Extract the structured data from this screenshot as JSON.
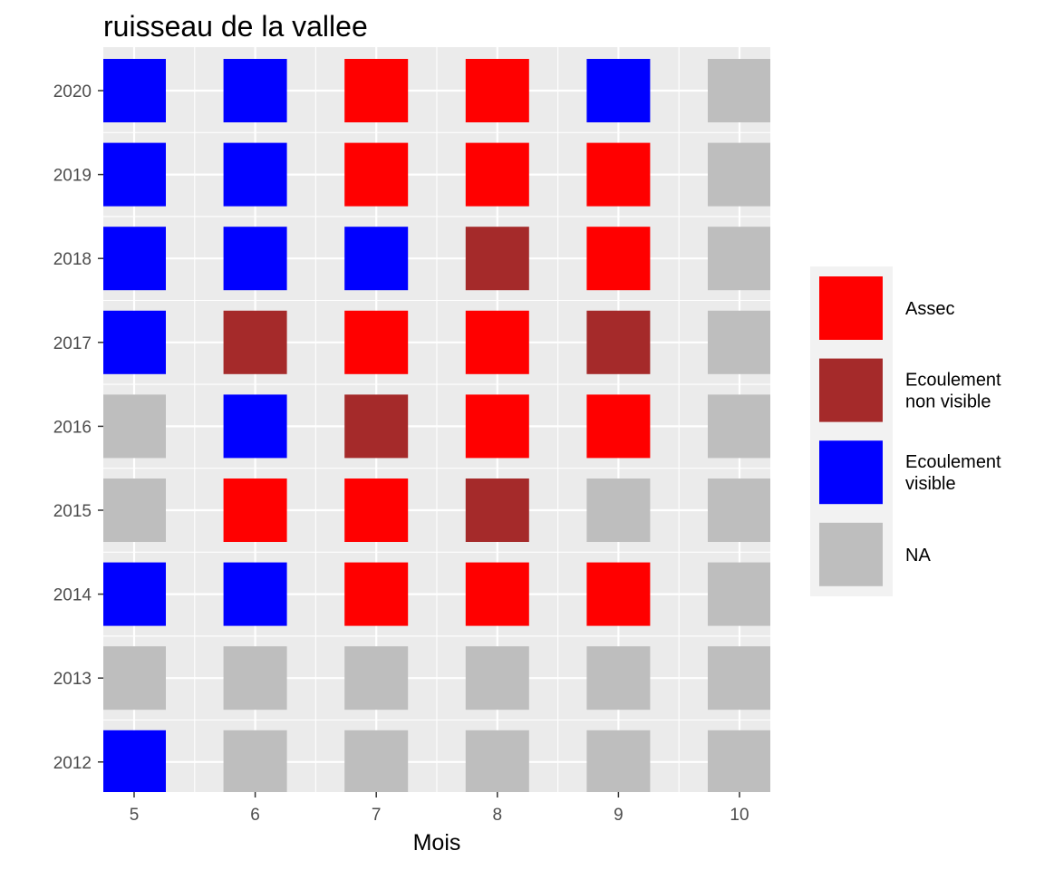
{
  "chart_data": {
    "type": "heatmap",
    "title": "ruisseau de la vallee",
    "xlabel": "Mois",
    "ylabel": "",
    "x_categories": [
      "5",
      "6",
      "7",
      "8",
      "9",
      "10"
    ],
    "y_categories": [
      "2012",
      "2013",
      "2014",
      "2015",
      "2016",
      "2017",
      "2018",
      "2019",
      "2020"
    ],
    "legend": {
      "position": "right",
      "entries": [
        {
          "key": "assec",
          "label": [
            "Assec"
          ],
          "color": "#FF0000"
        },
        {
          "key": "ecoulement_non_visible",
          "label": [
            "Ecoulement",
            "non visible"
          ],
          "color": "#A52A2A"
        },
        {
          "key": "ecoulement_visible",
          "label": [
            "Ecoulement",
            "visible"
          ],
          "color": "#0000FF"
        },
        {
          "key": "na",
          "label": [
            "NA"
          ],
          "color": "#BEBEBE"
        }
      ]
    },
    "rows": [
      {
        "year": "2020",
        "values": [
          "ecoulement_visible",
          "ecoulement_visible",
          "assec",
          "assec",
          "ecoulement_visible",
          "na"
        ]
      },
      {
        "year": "2019",
        "values": [
          "ecoulement_visible",
          "ecoulement_visible",
          "assec",
          "assec",
          "assec",
          "na"
        ]
      },
      {
        "year": "2018",
        "values": [
          "ecoulement_visible",
          "ecoulement_visible",
          "ecoulement_visible",
          "ecoulement_non_visible",
          "assec",
          "na"
        ]
      },
      {
        "year": "2017",
        "values": [
          "ecoulement_visible",
          "ecoulement_non_visible",
          "assec",
          "assec",
          "ecoulement_non_visible",
          "na"
        ]
      },
      {
        "year": "2016",
        "values": [
          "na",
          "ecoulement_visible",
          "ecoulement_non_visible",
          "assec",
          "assec",
          "na"
        ]
      },
      {
        "year": "2015",
        "values": [
          "na",
          "assec",
          "assec",
          "ecoulement_non_visible",
          "na",
          "na"
        ]
      },
      {
        "year": "2014",
        "values": [
          "ecoulement_visible",
          "ecoulement_visible",
          "assec",
          "assec",
          "assec",
          "na"
        ]
      },
      {
        "year": "2013",
        "values": [
          "na",
          "na",
          "na",
          "na",
          "na",
          "na"
        ]
      },
      {
        "year": "2012",
        "values": [
          "ecoulement_visible",
          "na",
          "na",
          "na",
          "na",
          "na"
        ]
      }
    ],
    "grid": true,
    "panel_background": "#EBEBEB",
    "grid_color": "#FFFFFF"
  }
}
